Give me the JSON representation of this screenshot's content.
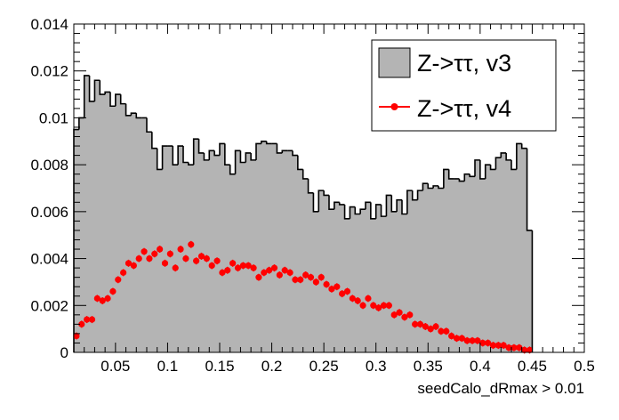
{
  "chart_data": {
    "type": "histogram",
    "xlabel": "seedCalo_dRmax > 0.01",
    "ylabel": "",
    "xlim": [
      0.01,
      0.5
    ],
    "ylim": [
      0,
      0.014
    ],
    "x_ticks": [
      "0.05",
      "0.1",
      "0.15",
      "0.2",
      "0.25",
      "0.3",
      "0.35",
      "0.4",
      "0.45",
      "0.5"
    ],
    "y_ticks": [
      "0",
      "0.002",
      "0.004",
      "0.006",
      "0.008",
      "0.01",
      "0.012",
      "0.014"
    ],
    "bin_edges_start": 0.01,
    "bin_width": 0.005,
    "legend_position": "top-right",
    "grid": false,
    "series": [
      {
        "name": "Z->ττ, v3",
        "style": "filled-histogram",
        "fill_color": "#b4b4b4",
        "line_color": "#000000",
        "values": [
          0.0095,
          0.01,
          0.0118,
          0.0107,
          0.0116,
          0.011,
          0.0111,
          0.0105,
          0.011,
          0.0106,
          0.0101,
          0.0102,
          0.01,
          0.01,
          0.0094,
          0.0087,
          0.0078,
          0.0088,
          0.0088,
          0.008,
          0.0088,
          0.0081,
          0.008,
          0.0091,
          0.0085,
          0.0082,
          0.0086,
          0.0084,
          0.0089,
          0.008,
          0.0076,
          0.0086,
          0.0081,
          0.0085,
          0.0082,
          0.0089,
          0.009,
          0.0089,
          0.0089,
          0.0085,
          0.0086,
          0.0086,
          0.0084,
          0.0078,
          0.0074,
          0.0068,
          0.006,
          0.0069,
          0.0067,
          0.0061,
          0.0064,
          0.0063,
          0.0057,
          0.0062,
          0.0059,
          0.0061,
          0.0064,
          0.0057,
          0.0063,
          0.0058,
          0.0067,
          0.006,
          0.0065,
          0.0059,
          0.0069,
          0.0065,
          0.0069,
          0.0072,
          0.007,
          0.0071,
          0.007,
          0.0078,
          0.0074,
          0.0074,
          0.0073,
          0.0076,
          0.0075,
          0.0082,
          0.0074,
          0.008,
          0.0078,
          0.0083,
          0.0085,
          0.0082,
          0.0078,
          0.0089,
          0.0087,
          0.0052
        ]
      },
      {
        "name": "Z->ττ, v4",
        "style": "markers-with-errors",
        "color": "#ff0000",
        "values": [
          0.0007,
          0.0012,
          0.0014,
          0.0014,
          0.0023,
          0.0022,
          0.0023,
          0.0026,
          0.0031,
          0.0034,
          0.0038,
          0.0037,
          0.004,
          0.0043,
          0.004,
          0.0042,
          0.0044,
          0.0038,
          0.0042,
          0.0036,
          0.0044,
          0.004,
          0.0046,
          0.0039,
          0.0041,
          0.004,
          0.0037,
          0.0039,
          0.0034,
          0.0035,
          0.0038,
          0.0036,
          0.0037,
          0.0037,
          0.0036,
          0.0032,
          0.0034,
          0.0035,
          0.0036,
          0.0033,
          0.0035,
          0.0034,
          0.0031,
          0.0031,
          0.0033,
          0.0032,
          0.003,
          0.0032,
          0.0029,
          0.0027,
          0.0028,
          0.0025,
          0.0026,
          0.0023,
          0.0022,
          0.002,
          0.0023,
          0.002,
          0.0019,
          0.002,
          0.002,
          0.0016,
          0.0017,
          0.0015,
          0.0016,
          0.0012,
          0.0012,
          0.0011,
          0.001,
          0.0011,
          0.0009,
          0.0009,
          0.0007,
          0.0006,
          0.0006,
          0.0005,
          0.0005,
          0.0005,
          0.0004,
          0.0004,
          0.0003,
          0.0003,
          0.0003,
          0.0002,
          0.0002,
          0.0002,
          0.0001,
          0.0001
        ]
      }
    ]
  }
}
